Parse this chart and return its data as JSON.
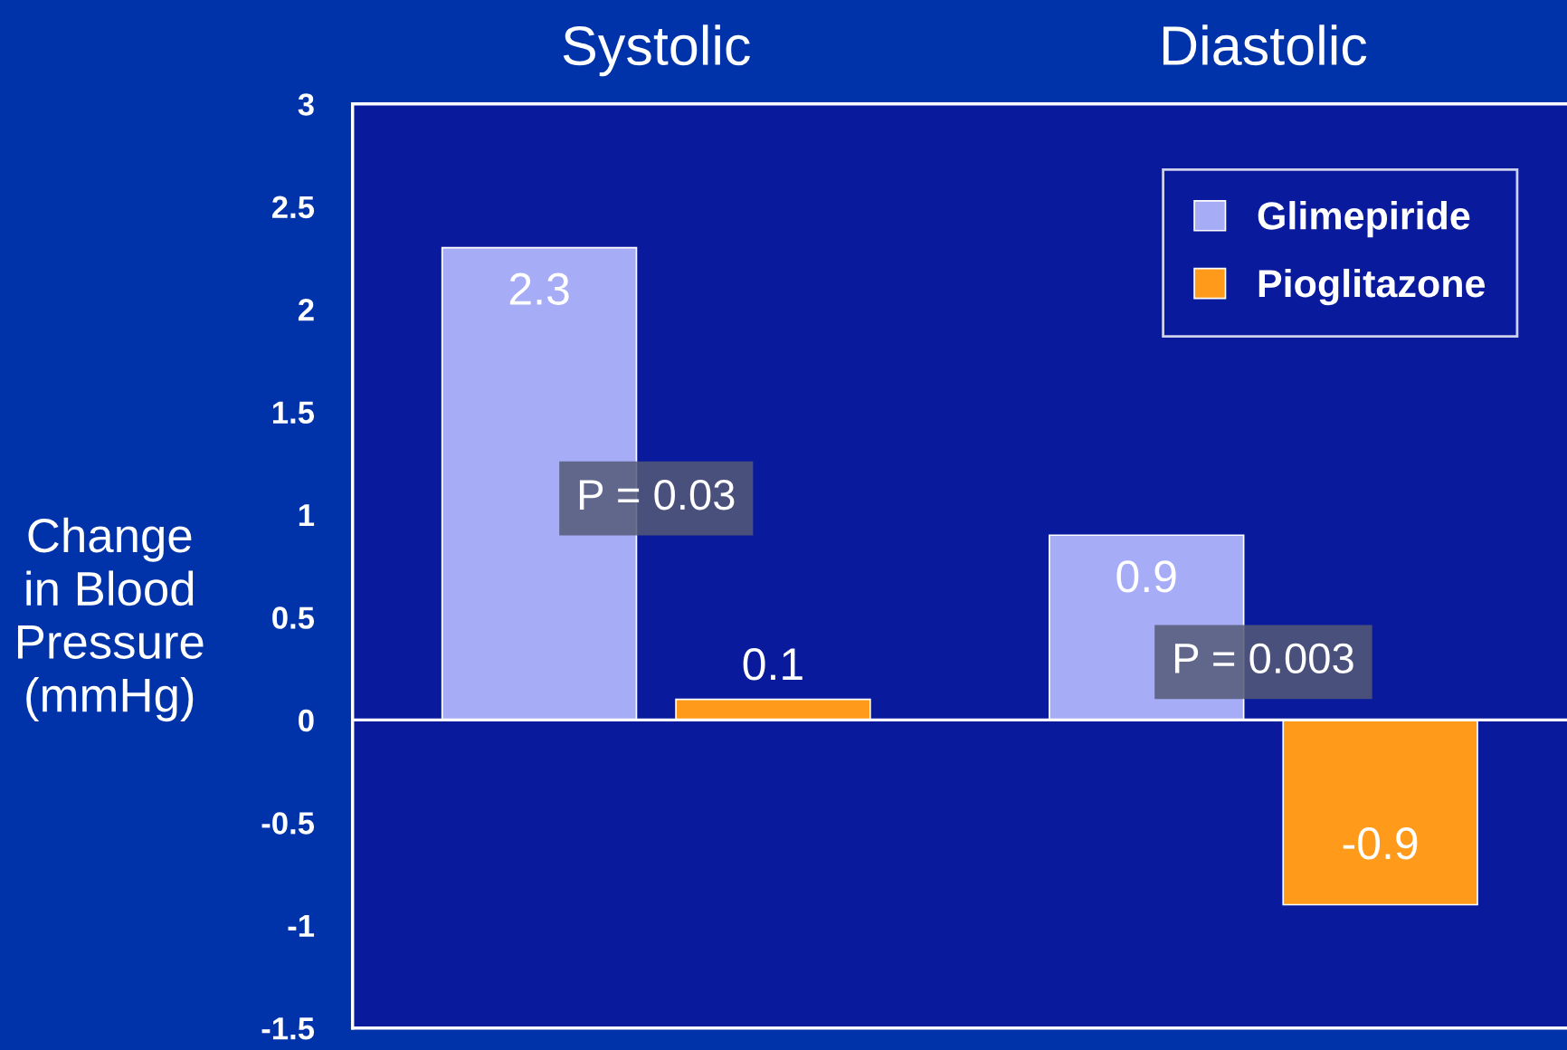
{
  "chart_data": {
    "type": "bar",
    "ylabel": "Change\nin Blood\nPressure\n(mmHg)",
    "categories": [
      "Systolic",
      "Diastolic"
    ],
    "series": [
      {
        "name": "Glimepiride",
        "color": "#a6acf6",
        "values": [
          2.3,
          0.9
        ]
      },
      {
        "name": "Pioglitazone",
        "color": "#ff9a1a",
        "values": [
          0.1,
          -0.9
        ]
      }
    ],
    "ylim": [
      -1.5,
      3
    ],
    "yticks": [
      {
        "value": -1.5,
        "label": "-1.5"
      },
      {
        "value": -1,
        "label": "-1"
      },
      {
        "value": -0.5,
        "label": "-0.5"
      },
      0,
      0.5,
      1,
      1.5,
      2,
      2.5,
      3
    ],
    "data_labels": true,
    "annotations": [
      "P = 0.03",
      "P = 0.003"
    ],
    "legend": "top right"
  }
}
